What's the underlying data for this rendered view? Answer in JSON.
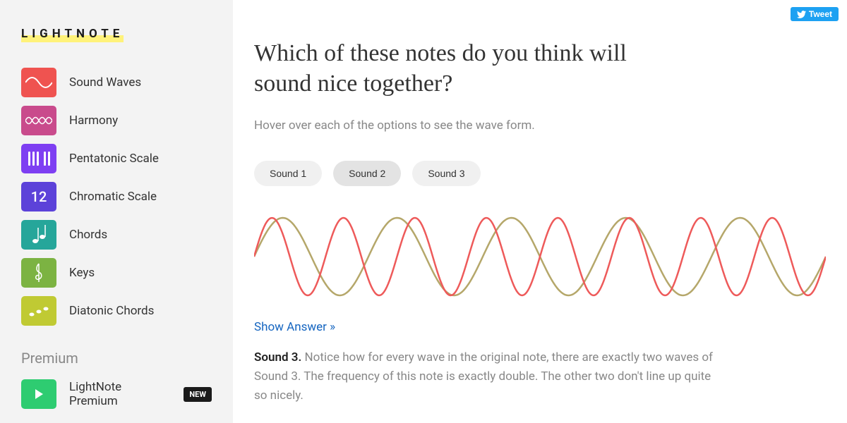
{
  "brand": "LIGHTNOTE",
  "sidebar": {
    "items": [
      {
        "label": "Sound Waves",
        "color": "#ef5350",
        "icon": "wave"
      },
      {
        "label": "Harmony",
        "color": "#c94b8c",
        "icon": "harmony"
      },
      {
        "label": "Pentatonic Scale",
        "color": "#7e3ff2",
        "icon": "bars"
      },
      {
        "label": "Chromatic Scale",
        "color": "#5c42d9",
        "icon": "number",
        "value": "12"
      },
      {
        "label": "Chords",
        "color": "#26a69a",
        "icon": "chord"
      },
      {
        "label": "Keys",
        "color": "#7cb342",
        "icon": "clef"
      },
      {
        "label": "Diatonic Chords",
        "color": "#c0ca33",
        "icon": "diatonic"
      }
    ],
    "premium_header": "Premium",
    "premium_items": [
      {
        "label": "LightNote Premium",
        "color": "#2ecc71",
        "icon": "play",
        "badge": "NEW"
      }
    ]
  },
  "tweet_label": "Tweet",
  "main": {
    "title": "Which of these notes do you think will sound nice together?",
    "subtitle": "Hover over each of the options to see the wave form.",
    "tabs": [
      {
        "label": "Sound 1",
        "active": false
      },
      {
        "label": "Sound 2",
        "active": true
      },
      {
        "label": "Sound 3",
        "active": false
      }
    ],
    "waves": {
      "wave1": {
        "color": "#ee5a5a",
        "cycles": 8,
        "strokeWidth": 2.5
      },
      "wave2": {
        "color": "#b5a76a",
        "cycles": 5,
        "strokeWidth": 2.5
      }
    },
    "show_answer": "Show Answer »",
    "answer_strong": "Sound 3.",
    "answer_rest": " Notice how for every wave in the original note, there are exactly two waves of Sound 3. The frequency of this note is exactly double. The other two don't line up quite so nicely."
  }
}
